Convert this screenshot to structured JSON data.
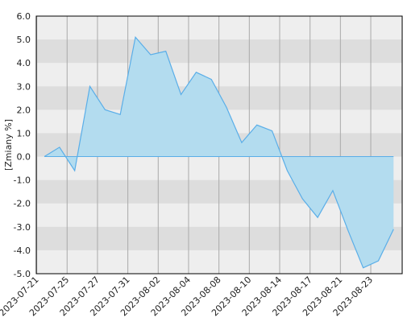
{
  "chart_data": {
    "type": "area",
    "y_label": "[Zmiany %]",
    "categories": [
      "2023-07-21",
      null,
      "2023-07-25",
      null,
      "2023-07-27",
      null,
      "2023-07-31",
      null,
      "2023-08-02",
      null,
      "2023-08-04",
      null,
      "2023-08-08",
      null,
      "2023-08-10",
      null,
      "2023-08-14",
      null,
      "2023-08-17",
      null,
      "2023-08-21",
      null,
      "2023-08-23",
      null
    ],
    "values": [
      0.0,
      0.4,
      -0.6,
      3.0,
      2.0,
      1.8,
      5.1,
      4.35,
      4.5,
      2.65,
      3.6,
      3.3,
      2.1,
      0.6,
      1.35,
      1.1,
      -0.6,
      -1.8,
      -2.6,
      -1.45,
      -3.15,
      -4.75,
      -4.45,
      -3.1
    ],
    "color": "#5aaee8",
    "fill": "#b3dcef",
    "ylim": [
      -5,
      6
    ],
    "yticks": [
      {
        "value": -5,
        "label": "-5.0"
      },
      {
        "value": -4,
        "label": "-4.0"
      },
      {
        "value": -3,
        "label": "-3.0"
      },
      {
        "value": -2,
        "label": "-2.0"
      },
      {
        "value": -1,
        "label": "-1.0"
      },
      {
        "value": 0,
        "label": "0.0"
      },
      {
        "value": 1,
        "label": "1.0"
      },
      {
        "value": 2,
        "label": "2.0"
      },
      {
        "value": 3,
        "label": "3.0"
      },
      {
        "value": 4,
        "label": "4.0"
      },
      {
        "value": 5,
        "label": "5.0"
      },
      {
        "value": 6,
        "label": "6.0"
      }
    ],
    "grid": true
  }
}
